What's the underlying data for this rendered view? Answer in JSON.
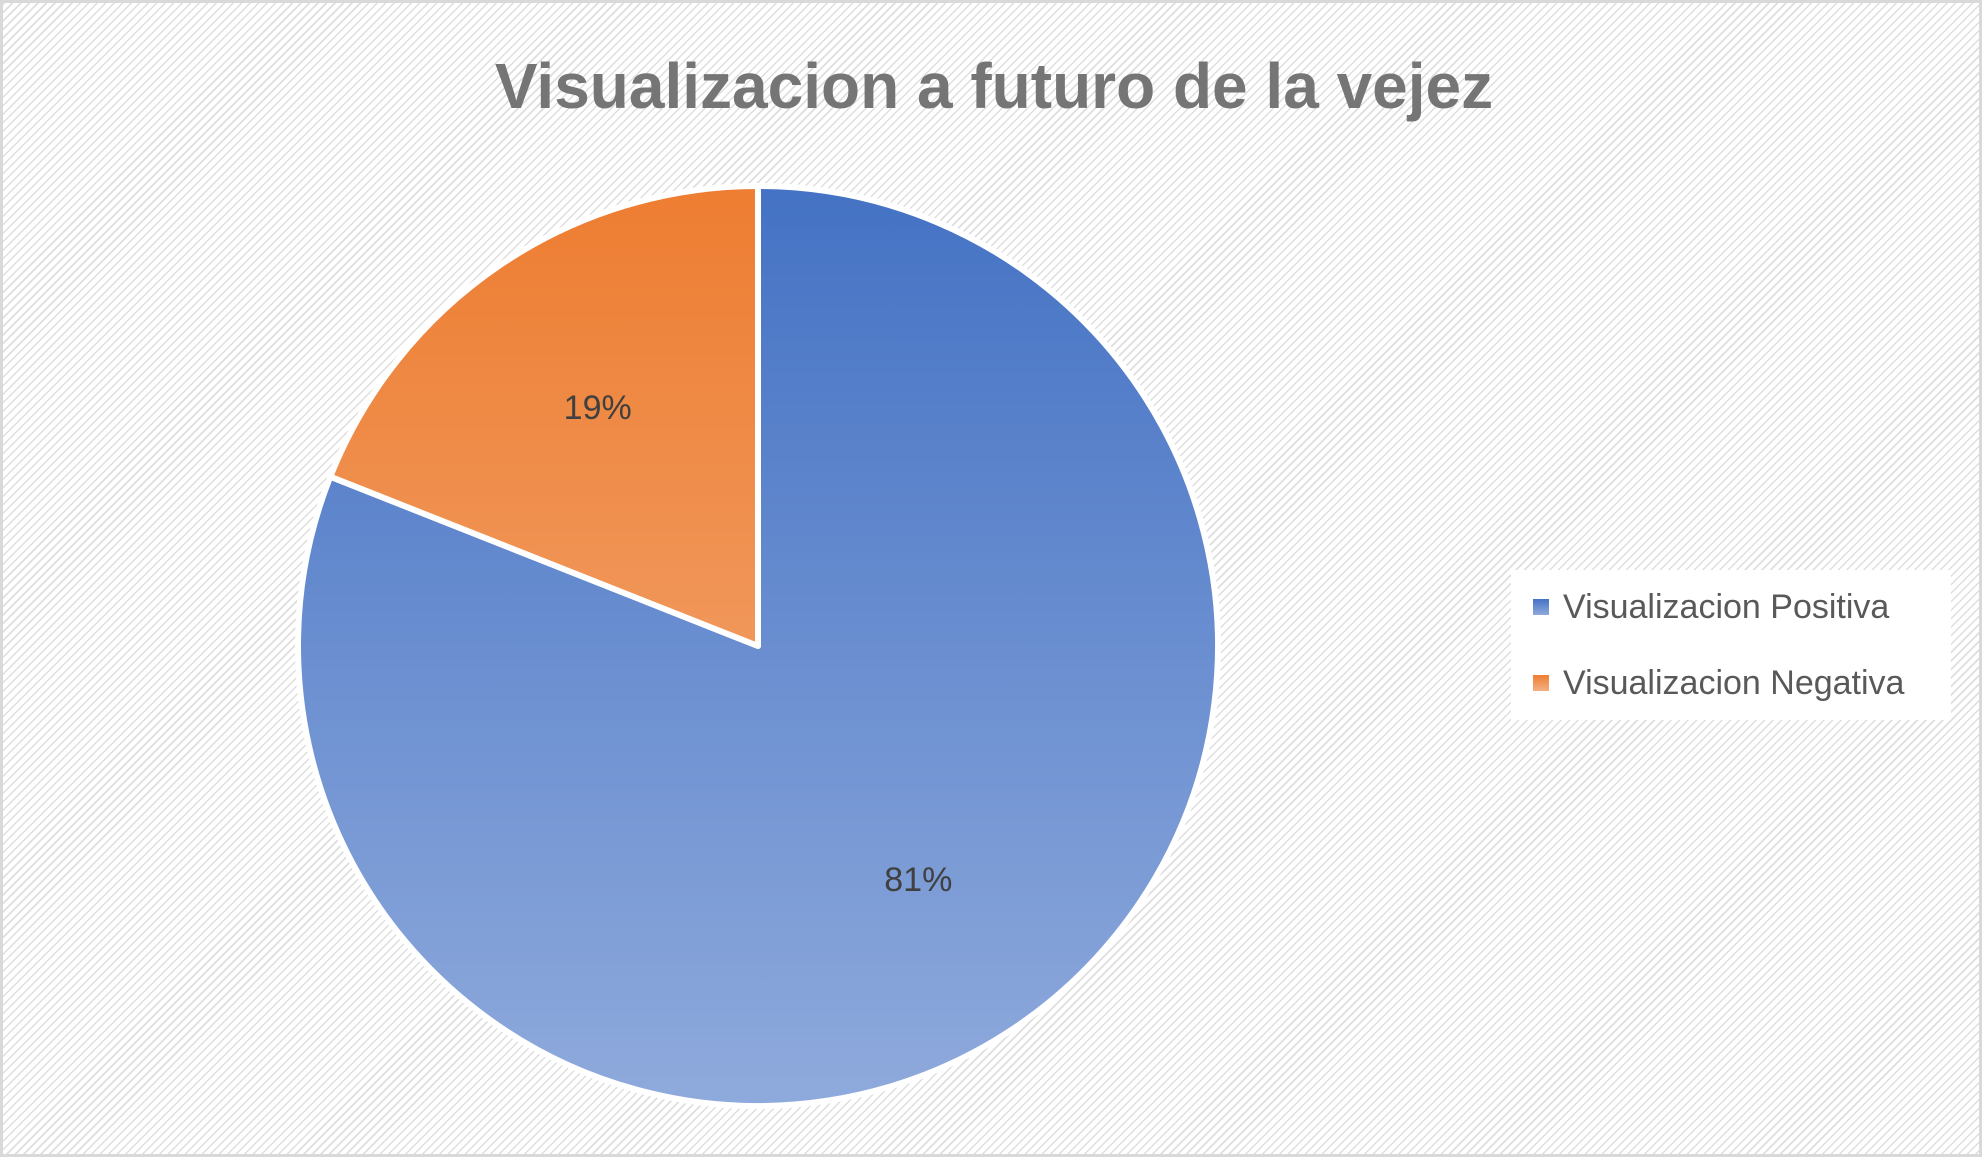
{
  "chart_data": {
    "type": "pie",
    "title": "Visualizacion a futuro de la vejez",
    "categories": [
      "Visualizacion Positiva",
      "Visualizacion Negativa"
    ],
    "values": [
      81,
      19
    ],
    "data_labels": [
      "81%",
      "19%"
    ],
    "colors": [
      {
        "top": "#4472c4",
        "bottom": "#8faadc"
      },
      {
        "top": "#ed7d31",
        "bottom": "#f4b183"
      }
    ],
    "start_angle_deg": 0,
    "direction": "clockwise",
    "legend_position": "right"
  }
}
